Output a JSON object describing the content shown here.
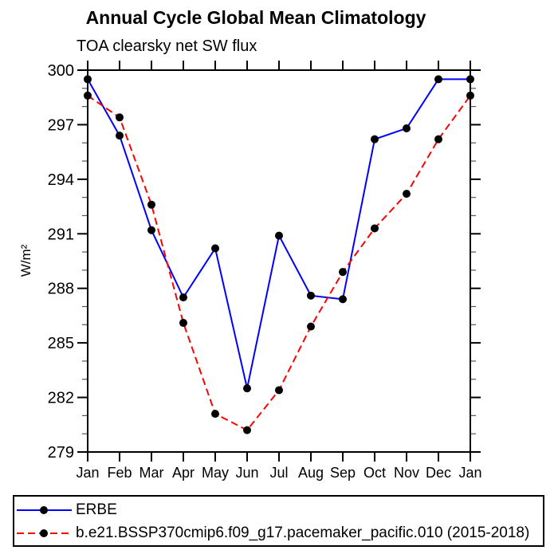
{
  "chart_data": {
    "type": "line",
    "title": "Annual Cycle Global Mean Climatology",
    "subtitle": "TOA clearsky net SW flux",
    "ylabel": "W/m²",
    "x_labels": [
      "Jan",
      "Feb",
      "Mar",
      "Apr",
      "May",
      "Jun",
      "Jul",
      "Aug",
      "Sep",
      "Oct",
      "Nov",
      "Dec",
      "Jan"
    ],
    "ylim": [
      279,
      300
    ],
    "yticks": [
      279,
      282,
      285,
      288,
      291,
      294,
      297,
      300
    ],
    "ytick_minor_step": 1,
    "grid": false,
    "legend_position": "bottom",
    "frame_color": "#000000",
    "series": [
      {
        "name": "ERBE",
        "color": "#0000ff",
        "style": "solid",
        "marker": "circle",
        "marker_color": "#000000",
        "values": [
          299.5,
          296.4,
          291.2,
          287.5,
          290.2,
          282.5,
          290.9,
          287.6,
          287.4,
          296.2,
          296.8,
          299.5,
          299.5
        ]
      },
      {
        "name": "b.e21.BSSP370cmip6.f09_g17.pacemaker_pacific.010 (2015-2018)",
        "color": "#ff0000",
        "style": "dashed",
        "marker": "circle",
        "marker_color": "#000000",
        "values": [
          298.6,
          297.4,
          292.6,
          286.1,
          281.1,
          280.2,
          282.4,
          285.9,
          288.9,
          291.3,
          293.2,
          296.2,
          298.6
        ]
      }
    ]
  }
}
